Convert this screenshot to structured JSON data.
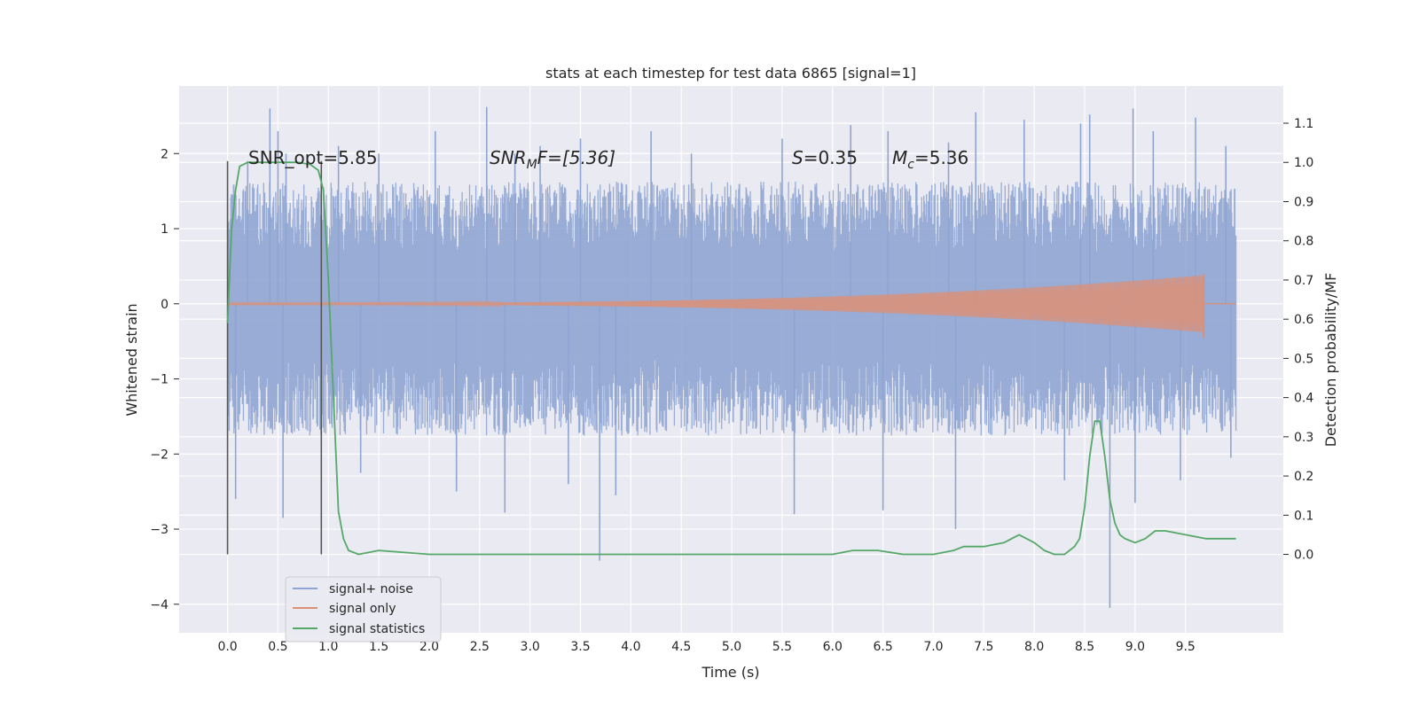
{
  "chart_data": {
    "type": "line",
    "title": "stats at each timestep for test data 6865 [signal=1]",
    "xlabel": "Time (s)",
    "ylabel_left": "Whitened strain",
    "ylabel_right": "Detection probability/MF",
    "xlim": [
      -0.48,
      10.47
    ],
    "ylim_left": [
      -4.38,
      2.9
    ],
    "ylim_right": [
      -0.2,
      1.195
    ],
    "x_ticks": [
      "0.0",
      "0.5",
      "1.0",
      "1.5",
      "2.0",
      "2.5",
      "3.0",
      "3.5",
      "4.0",
      "4.5",
      "5.0",
      "5.5",
      "6.0",
      "6.5",
      "7.0",
      "7.5",
      "8.0",
      "8.5",
      "9.0",
      "9.5"
    ],
    "x_tick_values": [
      0,
      0.5,
      1,
      1.5,
      2,
      2.5,
      3,
      3.5,
      4,
      4.5,
      5,
      5.5,
      6,
      6.5,
      7,
      7.5,
      8,
      8.5,
      9,
      9.5
    ],
    "y_ticks_left": [
      "2",
      "1",
      "0",
      "−1",
      "−2",
      "−3",
      "−4"
    ],
    "y_tick_values_left": [
      2,
      1,
      0,
      -1,
      -2,
      -3,
      -4
    ],
    "y_ticks_right": [
      "1.1",
      "1.0",
      "0.9",
      "0.8",
      "0.7",
      "0.6",
      "0.5",
      "0.4",
      "0.3",
      "0.2",
      "0.1",
      "0.0"
    ],
    "y_tick_values_right": [
      1.1,
      1.0,
      0.9,
      0.8,
      0.7,
      0.6,
      0.5,
      0.4,
      0.3,
      0.2,
      0.1,
      0.0
    ],
    "grid": true,
    "legend_position": "lower-left",
    "annotations": {
      "snr_opt": "SNR_opt=5.85",
      "snr_mf_main": "SNR",
      "snr_mf_sub": "M",
      "snr_mf_rest": "F=[5.36]",
      "s_main": "S",
      "s_rest": "=0.35",
      "mc_main": "M",
      "mc_sub": "c",
      "mc_rest": "=5.36"
    },
    "vertical_markers": [
      0.0,
      0.93
    ],
    "series": [
      {
        "name": "signal+ noise",
        "color": "#8fa5d1",
        "band": {
          "x_start": 0.0,
          "x_end": 10.0,
          "typical_upper": 1.25,
          "typical_lower": -1.35
        },
        "spikes_up": [
          [
            0.2,
            1.9
          ],
          [
            0.42,
            2.6
          ],
          [
            0.5,
            2.3
          ],
          [
            0.58,
            2.0
          ],
          [
            1.1,
            2.1
          ],
          [
            1.5,
            2.0
          ],
          [
            2.06,
            2.3
          ],
          [
            2.57,
            2.62
          ],
          [
            2.85,
            2.0
          ],
          [
            3.1,
            2.1
          ],
          [
            3.5,
            2.2
          ],
          [
            4.2,
            2.3
          ],
          [
            4.6,
            2.0
          ],
          [
            5.5,
            2.2
          ],
          [
            6.18,
            2.38
          ],
          [
            6.55,
            2.3
          ],
          [
            7.15,
            2.15
          ],
          [
            7.42,
            2.55
          ],
          [
            7.9,
            2.45
          ],
          [
            8.46,
            2.4
          ],
          [
            8.55,
            2.52
          ],
          [
            8.98,
            2.6
          ],
          [
            9.18,
            2.3
          ],
          [
            9.6,
            2.48
          ],
          [
            9.9,
            2.1
          ]
        ],
        "spikes_down": [
          [
            0.08,
            -2.6
          ],
          [
            0.55,
            -2.85
          ],
          [
            1.32,
            -2.25
          ],
          [
            2.27,
            -2.5
          ],
          [
            2.75,
            -2.78
          ],
          [
            3.38,
            -2.4
          ],
          [
            3.69,
            -3.42
          ],
          [
            3.85,
            -2.55
          ],
          [
            5.62,
            -2.8
          ],
          [
            6.5,
            -2.75
          ],
          [
            7.22,
            -3.0
          ],
          [
            8.3,
            -2.35
          ],
          [
            8.75,
            -4.05
          ],
          [
            9.0,
            -2.65
          ],
          [
            9.45,
            -2.35
          ],
          [
            9.95,
            -2.05
          ]
        ]
      },
      {
        "name": "signal only",
        "color": "#dd8f75",
        "chirp": {
          "x_start": 0.0,
          "x_end": 9.68,
          "amplitude_start": 0.01,
          "amplitude_end": 0.38,
          "merger_peak": 0.4,
          "merger_trough": -0.45
        }
      },
      {
        "name": "signal statistics",
        "color": "#55a868",
        "x": [
          0.0,
          0.04,
          0.08,
          0.12,
          0.2,
          0.3,
          0.5,
          0.7,
          0.82,
          0.9,
          0.95,
          1.0,
          1.05,
          1.1,
          1.15,
          1.2,
          1.3,
          1.5,
          2.0,
          2.5,
          3.0,
          3.5,
          4.0,
          4.5,
          5.0,
          5.5,
          6.0,
          6.2,
          6.45,
          6.7,
          7.0,
          7.2,
          7.3,
          7.5,
          7.7,
          7.85,
          8.0,
          8.1,
          8.2,
          8.3,
          8.4,
          8.45,
          8.5,
          8.55,
          8.6,
          8.65,
          8.7,
          8.75,
          8.8,
          8.85,
          8.9,
          9.0,
          9.1,
          9.2,
          9.3,
          9.5,
          9.7,
          9.9,
          10.0
        ],
        "y": [
          0.59,
          0.83,
          0.93,
          0.99,
          1.0,
          1.0,
          1.0,
          1.0,
          0.995,
          0.98,
          0.93,
          0.7,
          0.4,
          0.11,
          0.04,
          0.01,
          0.0,
          0.01,
          0.0,
          0.0,
          0.0,
          0.0,
          0.0,
          0.0,
          0.0,
          0.0,
          0.0,
          0.01,
          0.01,
          0.0,
          0.0,
          0.01,
          0.02,
          0.02,
          0.03,
          0.05,
          0.03,
          0.01,
          0.0,
          0.0,
          0.02,
          0.04,
          0.12,
          0.25,
          0.34,
          0.34,
          0.25,
          0.14,
          0.08,
          0.05,
          0.04,
          0.03,
          0.04,
          0.06,
          0.06,
          0.05,
          0.04,
          0.04,
          0.04
        ]
      }
    ]
  }
}
